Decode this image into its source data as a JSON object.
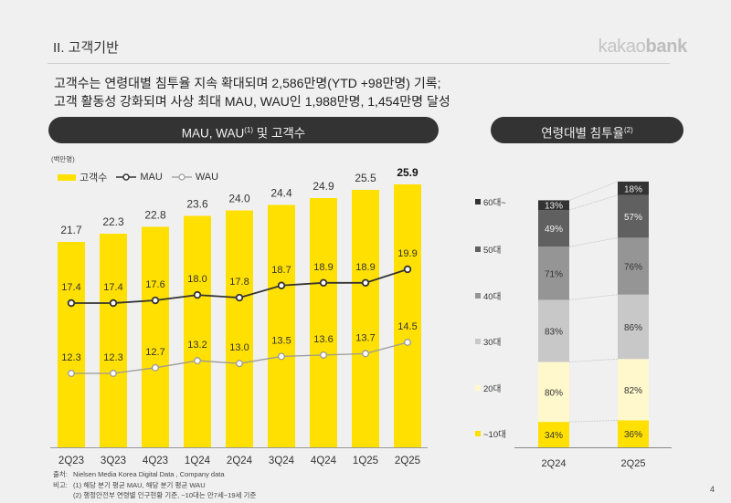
{
  "header": {
    "section_title": "II. 고객기반",
    "logo_light": "kakao",
    "logo_bold": "bank"
  },
  "summary": {
    "line1": "고객수는 연령대별 침투율 지속 확대되며 2,586만명(YTD +98만명) 기록;",
    "line2": "고객 활동성 강화되며 사상 최대 MAU, WAU인 1,988만명, 1,454만명 달성"
  },
  "left_panel": {
    "title": "MAU, WAU",
    "title_sup": "(1)",
    "title_suffix": " 및 고객수",
    "unit": "(백만명)"
  },
  "right_panel": {
    "title": "연령대별 침투율",
    "title_sup": "(2)"
  },
  "colors": {
    "yellow": "#ffe000",
    "mau_line": "#333333",
    "wau_line": "#9a9a9a",
    "pill_bg": "#333333"
  },
  "chart_data": [
    {
      "type": "bar",
      "title": "MAU, WAU 및 고객수",
      "ylabel": "(백만명)",
      "categories": [
        "2Q23",
        "3Q23",
        "4Q23",
        "1Q24",
        "2Q24",
        "3Q24",
        "4Q24",
        "1Q25",
        "2Q25"
      ],
      "legend": [
        "고객수",
        "MAU",
        "WAU"
      ],
      "legend_position": "top-left",
      "series": [
        {
          "name": "고객수",
          "kind": "bar",
          "values": [
            21.7,
            22.3,
            22.8,
            23.6,
            24.0,
            24.4,
            24.9,
            25.5,
            25.9
          ]
        },
        {
          "name": "MAU",
          "kind": "line",
          "values": [
            17.4,
            17.4,
            17.6,
            18.0,
            17.8,
            18.7,
            18.9,
            18.9,
            19.9
          ]
        },
        {
          "name": "WAU",
          "kind": "line",
          "values": [
            12.3,
            12.3,
            12.7,
            13.2,
            13.0,
            13.5,
            13.6,
            13.7,
            14.5
          ]
        }
      ],
      "labels": {
        "bar": [
          "21.7",
          "22.3",
          "22.8",
          "23.6",
          "24.0",
          "24.4",
          "24.9",
          "25.5",
          "25.9"
        ],
        "mau": [
          "17.4",
          "17.4",
          "17.6",
          "18.0",
          "17.8",
          "18.7",
          "18.9",
          "18.9",
          "19.9"
        ],
        "wau": [
          "12.3",
          "12.3",
          "12.7",
          "13.2",
          "13.0",
          "13.5",
          "13.6",
          "13.7",
          "14.5"
        ]
      },
      "grid": false
    },
    {
      "type": "bar",
      "stacked": true,
      "title": "연령대별 침투율",
      "categories": [
        "2Q24",
        "2Q25"
      ],
      "legend": [
        "60대~",
        "50대",
        "40대",
        "30대",
        "20대",
        "~10대"
      ],
      "legend_position": "left",
      "series": [
        {
          "name": "~10대",
          "color": "#ffe000",
          "values": [
            34,
            36
          ],
          "labels": [
            "34%",
            "36%"
          ]
        },
        {
          "name": "20대",
          "color": "#fff8cc",
          "values": [
            80,
            82
          ],
          "labels": [
            "80%",
            "82%"
          ]
        },
        {
          "name": "30대",
          "color": "#c8c8c8",
          "values": [
            83,
            86
          ],
          "labels": [
            "83%",
            "86%"
          ]
        },
        {
          "name": "40대",
          "color": "#959595",
          "values": [
            71,
            76
          ],
          "labels": [
            "71%",
            "76%"
          ]
        },
        {
          "name": "50대",
          "color": "#606060",
          "values": [
            49,
            57
          ],
          "labels": [
            "49%",
            "57%"
          ]
        },
        {
          "name": "60대~",
          "color": "#333333",
          "values": [
            13,
            18
          ],
          "labels": [
            "13%",
            "18%"
          ]
        }
      ],
      "grid": false
    }
  ],
  "footnotes": {
    "source_key": "출처:",
    "source_val": "Nielsen Media Korea Digital Data , Company data",
    "note_key": "비고:",
    "note1": "(1) 해당 분기 평균 MAU, 해당 분기 평균 WAU",
    "note2": "(2) 행정안전부 연령별 인구현황 기준, ~10대는 만7세~19세 기준"
  },
  "page_number": "4"
}
